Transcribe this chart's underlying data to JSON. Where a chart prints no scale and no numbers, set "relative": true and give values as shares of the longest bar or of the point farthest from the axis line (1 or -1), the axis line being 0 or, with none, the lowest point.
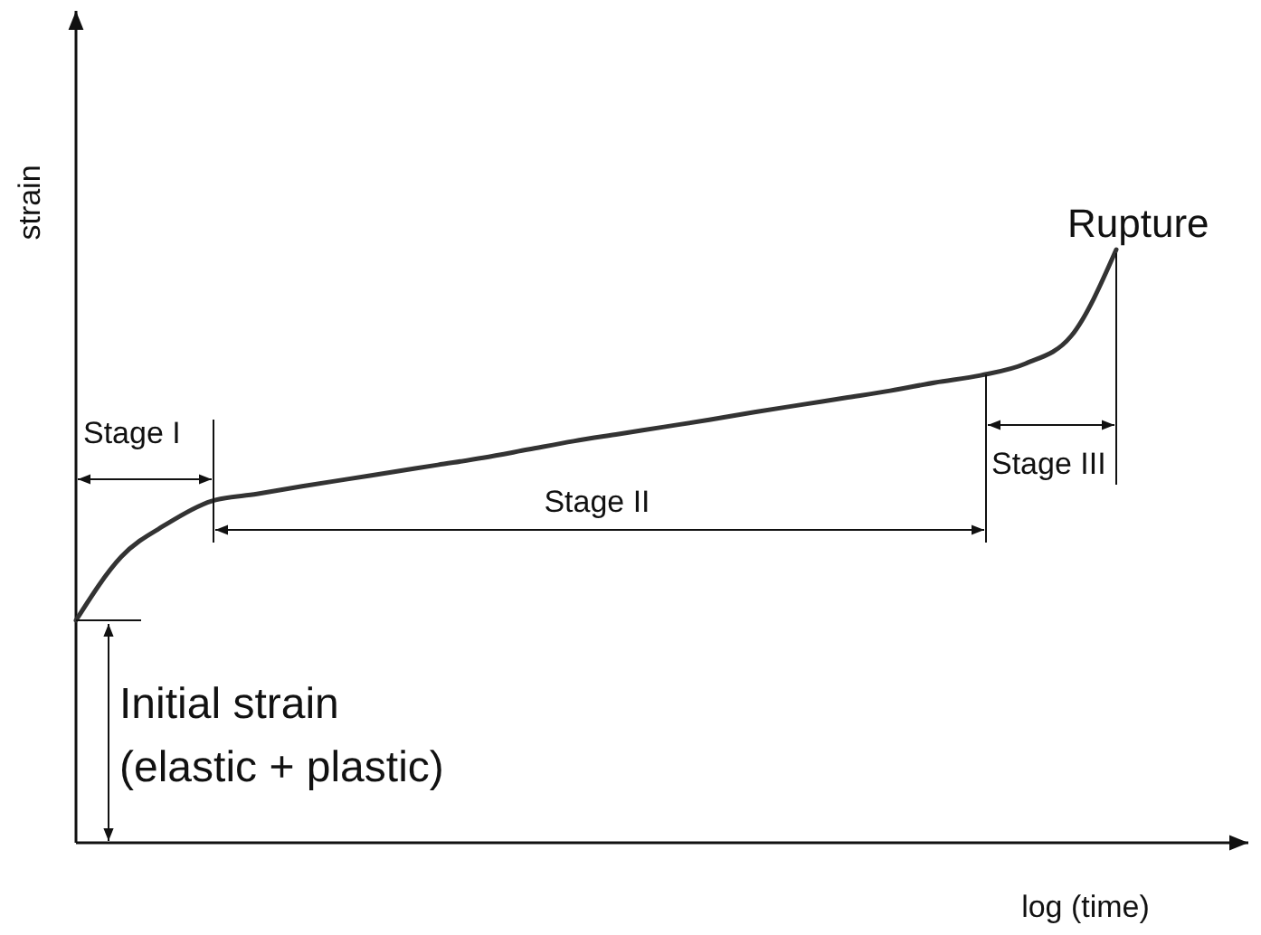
{
  "chart_data": {
    "type": "line",
    "relative": true,
    "tick_labels": false,
    "xlabel": "log (time)",
    "ylabel": "strain",
    "categories": [
      null,
      null,
      null,
      null,
      null,
      null,
      null,
      null,
      null,
      null,
      null,
      null,
      null,
      null,
      null,
      null,
      null,
      null,
      null,
      null,
      null,
      null,
      null,
      null
    ],
    "series": [
      {
        "color": "#333333",
        "values": [
          0.375,
          0.482,
          0.537,
          0.576,
          0.588,
          0.601,
          0.613,
          0.625,
          0.637,
          0.649,
          0.663,
          0.677,
          0.689,
          0.701,
          0.713,
          0.726,
          0.738,
          0.75,
          0.762,
          0.776,
          0.788,
          0.808,
          0.854,
          1
        ]
      }
    ],
    "annotations": [
      "Rupture",
      "Stage I",
      "Stage II",
      "Stage III",
      "Initial strain",
      "(elastic + plastic)"
    ]
  }
}
